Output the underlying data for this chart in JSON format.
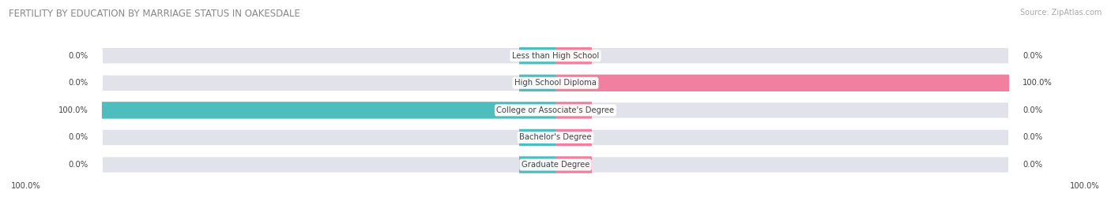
{
  "title": "FERTILITY BY EDUCATION BY MARRIAGE STATUS IN OAKESDALE",
  "source": "Source: ZipAtlas.com",
  "categories": [
    "Less than High School",
    "High School Diploma",
    "College or Associate's Degree",
    "Bachelor's Degree",
    "Graduate Degree"
  ],
  "married_values": [
    0.0,
    0.0,
    100.0,
    0.0,
    0.0
  ],
  "unmarried_values": [
    0.0,
    100.0,
    0.0,
    0.0,
    0.0
  ],
  "married_color": "#4dbdbd",
  "unmarried_color": "#f07fa0",
  "bg_color": "#e2e2ea",
  "row_bg_color": "#ebebf2",
  "text_color": "#444444",
  "title_color": "#888888",
  "source_color": "#aaaaaa",
  "max_value": 100.0,
  "figure_width": 14.06,
  "figure_height": 2.69
}
